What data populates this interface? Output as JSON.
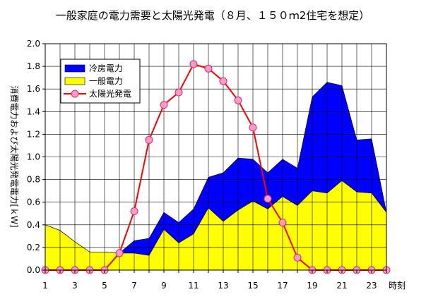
{
  "chart_data": {
    "type": "area",
    "title": "一般家庭の電力需要と太陽光発電（８月、１５０ｍ2住宅を想定）",
    "xlabel": "時刻",
    "ylabel": "消費電力および太陽光発電電力[ｋＷ]",
    "x": [
      1,
      2,
      3,
      4,
      5,
      6,
      7,
      8,
      9,
      10,
      11,
      12,
      13,
      14,
      15,
      16,
      17,
      18,
      19,
      20,
      21,
      22,
      23,
      24
    ],
    "x_tick_labels": [
      "1",
      "3",
      "5",
      "7",
      "9",
      "11",
      "13",
      "15",
      "17",
      "19",
      "21",
      "23"
    ],
    "ylim": [
      0,
      2.0
    ],
    "y_ticks": [
      "0.0",
      "0.2",
      "0.4",
      "0.6",
      "0.8",
      "1.0",
      "1.2",
      "1.4",
      "1.6",
      "1.8",
      "2.0"
    ],
    "grid": true,
    "legend_position": "top-left",
    "series": [
      {
        "name": "冷房電力",
        "kind": "stacked-area",
        "color": "#0000ff",
        "values": [
          0.0,
          0.0,
          0.0,
          0.0,
          0.0,
          0.0,
          0.11,
          0.15,
          0.15,
          0.18,
          0.22,
          0.27,
          0.43,
          0.46,
          0.37,
          0.32,
          0.33,
          0.33,
          0.83,
          0.98,
          0.84,
          0.46,
          0.48,
          0.0
        ]
      },
      {
        "name": "一般電力",
        "kind": "stacked-area",
        "color": "#ffff00",
        "values": [
          0.4,
          0.35,
          0.25,
          0.16,
          0.16,
          0.15,
          0.15,
          0.13,
          0.36,
          0.24,
          0.32,
          0.55,
          0.43,
          0.53,
          0.61,
          0.54,
          0.65,
          0.57,
          0.7,
          0.68,
          0.79,
          0.69,
          0.68,
          0.51
        ]
      },
      {
        "name": "太陽光発電",
        "kind": "line",
        "color": "#ff0000",
        "marker_color": "#ff99cc",
        "values": [
          0.0,
          0.0,
          0.0,
          0.0,
          0.0,
          0.15,
          0.52,
          1.15,
          1.46,
          1.57,
          1.82,
          1.78,
          1.67,
          1.5,
          1.26,
          0.63,
          0.42,
          0.11,
          0.0,
          0.0,
          0.0,
          0.0,
          0.0,
          0.0
        ]
      }
    ],
    "colors": {
      "plot_background": "#ffffff",
      "grid": "#000000"
    }
  }
}
